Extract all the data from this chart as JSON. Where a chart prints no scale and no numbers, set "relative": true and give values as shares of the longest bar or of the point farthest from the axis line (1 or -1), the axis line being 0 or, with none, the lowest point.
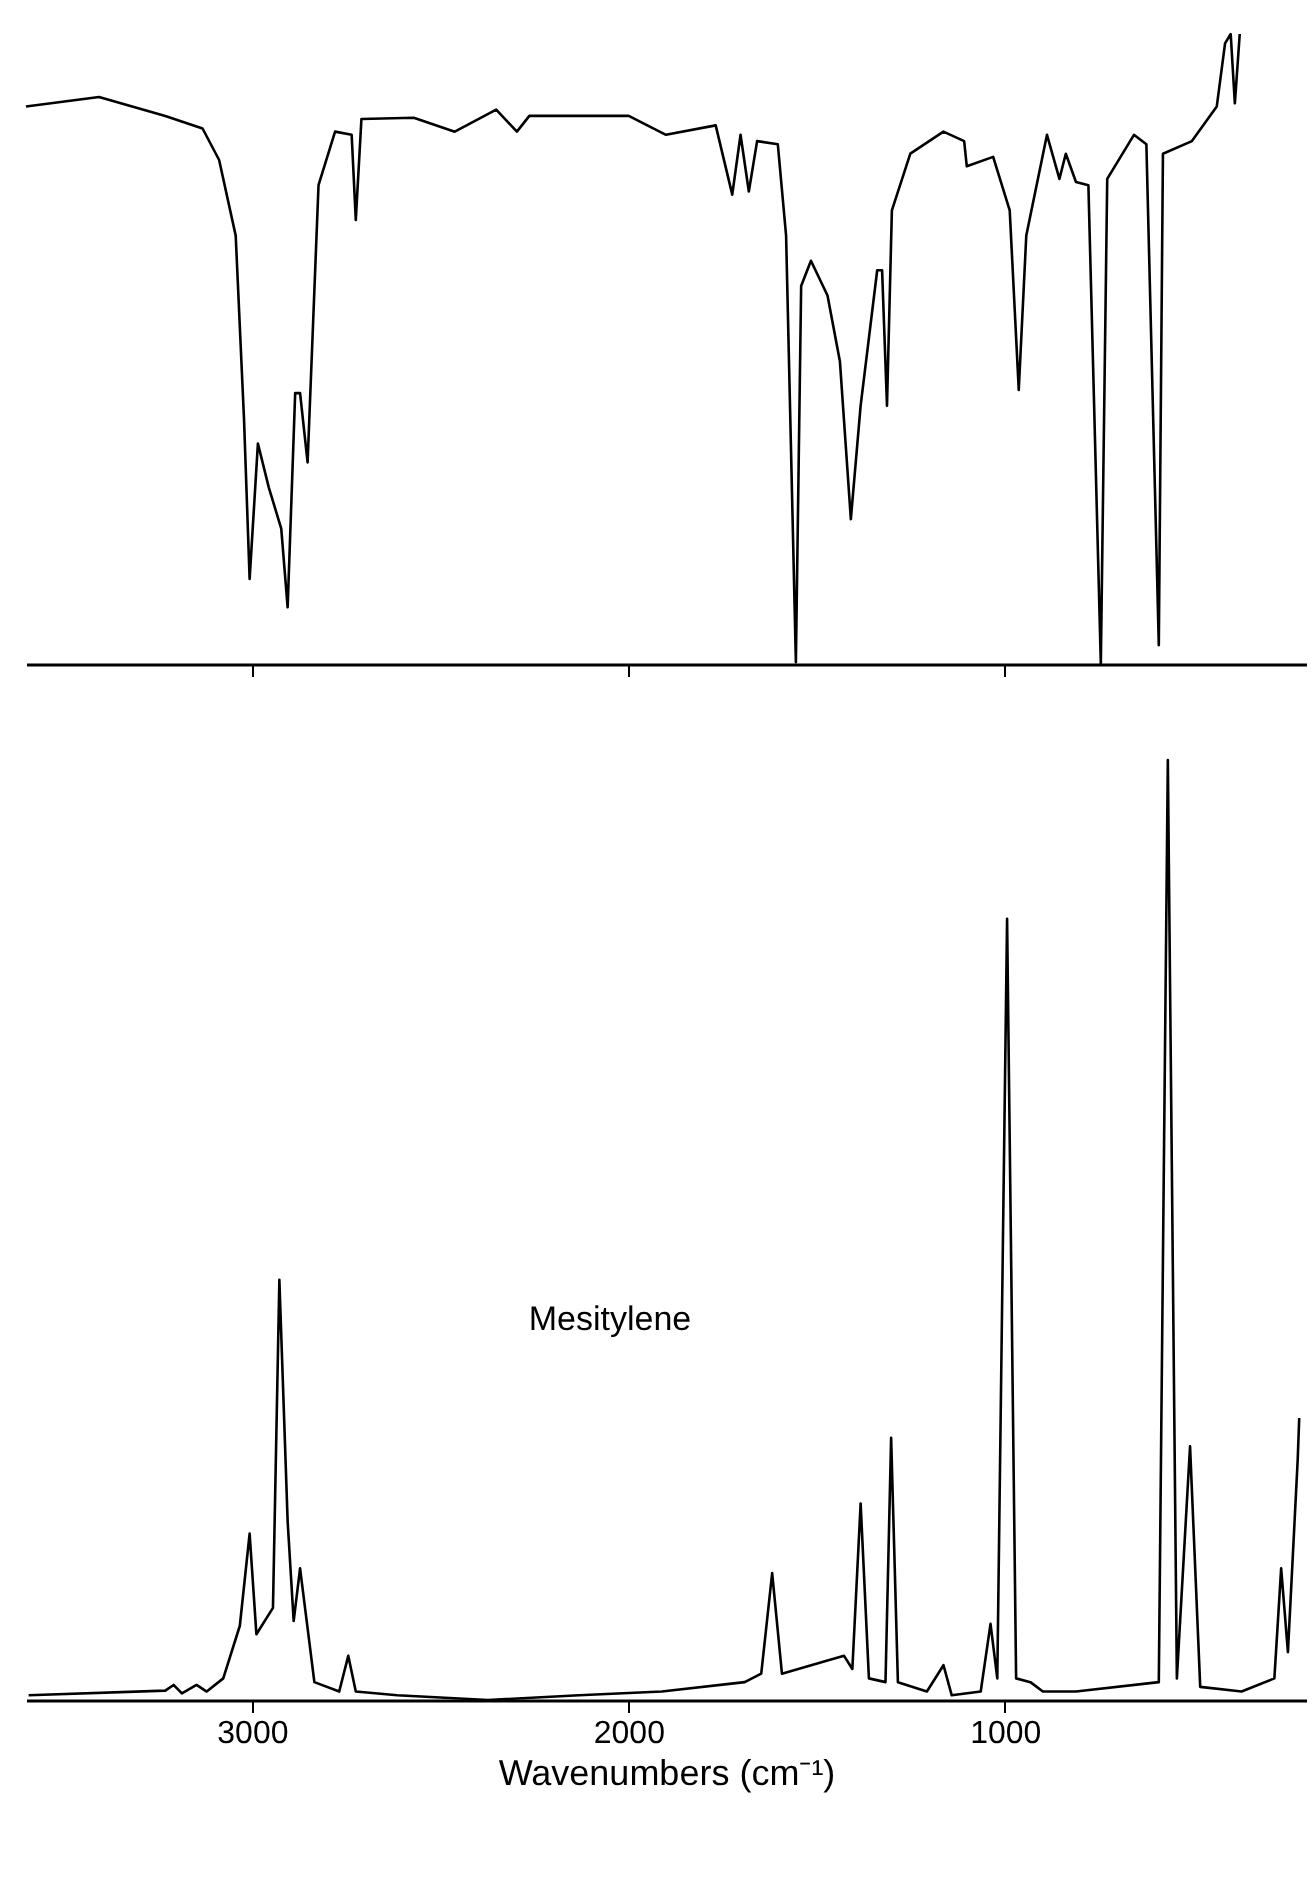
{
  "chart_data": [
    {
      "type": "line",
      "relative": true,
      "xlim": [
        3600,
        200
      ],
      "xticks": [
        3000,
        2000,
        1000
      ],
      "tick_labels": false,
      "series": [
        {
          "color": "#000000",
          "x": [
            3600,
            3406,
            3230,
            3131,
            3087,
            3043,
            3021,
            3006,
            2984,
            2955,
            2922,
            2905,
            2885,
            2872,
            2852,
            2823,
            2779,
            2735,
            2724,
            2709,
            2570,
            2461,
            2351,
            2296,
            2263,
            1999,
            1900,
            1768,
            1724,
            1702,
            1680,
            1658,
            1603,
            1581,
            1555,
            1541,
            1515,
            1471,
            1438,
            1409,
            1383,
            1339,
            1326,
            1313,
            1300,
            1251,
            1163,
            1108,
            1101,
            1031,
            987,
            963,
            943,
            888,
            855,
            838,
            811,
            778,
            745,
            728,
            657,
            624,
            591,
            580,
            503,
            437,
            415,
            400,
            389,
            376
          ],
          "values": [
            0.885,
            0.9,
            0.87,
            0.85,
            0.8,
            0.68,
            0.39,
            0.135,
            0.35,
            0.28,
            0.215,
            0.09,
            0.43,
            0.43,
            0.32,
            0.76,
            0.845,
            0.84,
            0.705,
            0.865,
            0.867,
            0.845,
            0.88,
            0.845,
            0.87,
            0.87,
            0.84,
            0.855,
            0.745,
            0.84,
            0.75,
            0.83,
            0.825,
            0.68,
            0.003,
            0.6,
            0.64,
            0.585,
            0.48,
            0.23,
            0.41,
            0.625,
            0.625,
            0.41,
            0.72,
            0.81,
            0.845,
            0.83,
            0.79,
            0.805,
            0.72,
            0.435,
            0.68,
            0.84,
            0.77,
            0.81,
            0.765,
            0.76,
            0,
            0.77,
            0.84,
            0.825,
            0.03,
            0.81,
            0.83,
            0.885,
            0.985,
            1,
            0.89,
            1
          ]
        }
      ]
    },
    {
      "type": "line",
      "relative": true,
      "xlim": [
        3600,
        200
      ],
      "xticks": [
        3000,
        2000,
        1000
      ],
      "tick_labels": "x",
      "xlabel": "Wavenumbers (cm⁻¹)",
      "annotations": [
        "Mesitylene"
      ],
      "series": [
        {
          "color": "#000000",
          "x": [
            3593,
            3230,
            3208,
            3186,
            3147,
            3120,
            3076,
            3032,
            3006,
            2988,
            2944,
            2927,
            2905,
            2889,
            2872,
            2834,
            2768,
            2744,
            2724,
            2614,
            2373,
            2131,
            1911,
            1691,
            1647,
            1618,
            1592,
            1471,
            1427,
            1405,
            1383,
            1361,
            1317,
            1302,
            1284,
            1207,
            1163,
            1141,
            1064,
            1038,
            1020,
            994,
            970,
            932,
            899,
            811,
            591,
            567,
            543,
            508,
            481,
            371,
            284,
            266,
            248,
            222,
            218
          ],
          "values": [
            0.005,
            0.01,
            0.016,
            0.007,
            0.016,
            0.009,
            0.023,
            0.079,
            0.177,
            0.07,
            0.098,
            0.447,
            0.19,
            0.084,
            0.14,
            0.019,
            0.009,
            0.047,
            0.009,
            0.005,
            0,
            0.005,
            0.009,
            0.019,
            0.028,
            0.135,
            0.028,
            0.042,
            0.047,
            0.033,
            0.209,
            0.023,
            0.019,
            0.279,
            0.019,
            0.009,
            0.037,
            0.005,
            0.009,
            0.081,
            0.023,
            0.831,
            0.023,
            0.019,
            0.009,
            0.009,
            0.019,
            1,
            0.023,
            0.27,
            0.014,
            0.009,
            0.023,
            0.14,
            0.051,
            0.256,
            0.3
          ]
        }
      ]
    }
  ]
}
